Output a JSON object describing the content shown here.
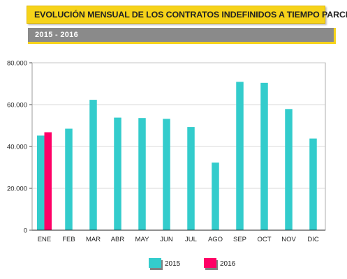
{
  "header": {
    "title": "EVOLUCIÓN MENSUAL DE LOS CONTRATOS INDEFINIDOS A TIEMPO PARCIAL",
    "subtitle": "2015 - 2016"
  },
  "colors": {
    "title_bg": "#f6d31a",
    "subtitle_bg": "#8a8a8a",
    "series_2015": "#33cccc",
    "series_2016": "#ff0066",
    "grid": "#cccccc",
    "axis": "#222222"
  },
  "chart_data": {
    "type": "bar",
    "title": "",
    "xlabel": "",
    "ylabel": "",
    "categories": [
      "ENE",
      "FEB",
      "MAR",
      "ABR",
      "MAY",
      "JUN",
      "JUL",
      "AGO",
      "SEP",
      "OCT",
      "NOV",
      "DIC"
    ],
    "ylim": [
      0,
      80000
    ],
    "yticks": [
      0,
      20000,
      40000,
      60000,
      80000
    ],
    "ytick_labels": [
      "0",
      "20.000",
      "40.000",
      "60.000",
      "80.000"
    ],
    "grid": true,
    "legend_position": "bottom",
    "series": [
      {
        "name": "2015",
        "color": "#33cccc",
        "values": [
          45200,
          48500,
          62300,
          53800,
          53600,
          53200,
          49300,
          32300,
          70900,
          70400,
          57900,
          43800
        ]
      },
      {
        "name": "2016",
        "color": "#ff0066",
        "values": [
          46800,
          null,
          null,
          null,
          null,
          null,
          null,
          null,
          null,
          null,
          null,
          null
        ]
      }
    ]
  }
}
